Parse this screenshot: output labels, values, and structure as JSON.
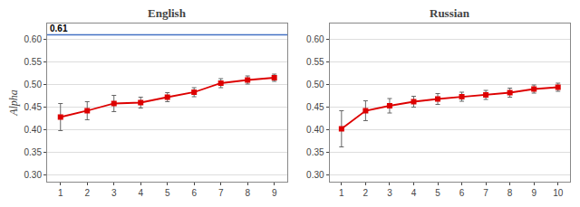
{
  "chart_data": [
    {
      "type": "line",
      "title": "English",
      "y_label": "Alpha",
      "x": [
        1,
        2,
        3,
        4,
        5,
        6,
        7,
        8,
        9
      ],
      "values": [
        0.428,
        0.442,
        0.458,
        0.46,
        0.472,
        0.483,
        0.503,
        0.51,
        0.515
      ],
      "yerr": [
        0.03,
        0.02,
        0.018,
        0.012,
        0.01,
        0.01,
        0.01,
        0.009,
        0.008
      ],
      "reference_line": {
        "y": 0.61,
        "label": "0.61",
        "color": "#4472c4"
      },
      "color": "#dd0000",
      "marker": "square",
      "grid": "y",
      "xlim": [
        0.5,
        9.5
      ],
      "xticks": [
        1,
        2,
        3,
        4,
        5,
        6,
        7,
        8,
        9
      ],
      "ylim": [
        0.285,
        0.635
      ],
      "yticks": [
        {
          "value": 0.3,
          "label": "0.30"
        },
        0.35,
        {
          "value": 0.4,
          "label": "0.40"
        },
        0.45,
        {
          "value": 0.5,
          "label": "0.50"
        },
        0.55,
        {
          "value": 0.6,
          "label": "0.60"
        }
      ]
    },
    {
      "type": "line",
      "title": "Russian",
      "x": [
        1,
        2,
        3,
        4,
        5,
        6,
        7,
        8,
        9,
        10
      ],
      "values": [
        0.402,
        0.442,
        0.453,
        0.462,
        0.468,
        0.473,
        0.477,
        0.482,
        0.49,
        0.494
      ],
      "yerr": [
        0.04,
        0.022,
        0.016,
        0.012,
        0.012,
        0.01,
        0.01,
        0.01,
        0.009,
        0.009
      ],
      "color": "#dd0000",
      "marker": "square",
      "grid": "y",
      "xlim": [
        0.5,
        10.5
      ],
      "xticks": [
        1,
        2,
        3,
        4,
        5,
        6,
        7,
        8,
        9,
        10
      ],
      "ylim": [
        0.285,
        0.635
      ],
      "yticks": [
        {
          "value": 0.3,
          "label": "0.30"
        },
        0.35,
        {
          "value": 0.4,
          "label": "0.40"
        },
        0.45,
        {
          "value": 0.5,
          "label": "0.50"
        },
        0.55,
        {
          "value": 0.6,
          "label": "0.60"
        }
      ]
    }
  ]
}
